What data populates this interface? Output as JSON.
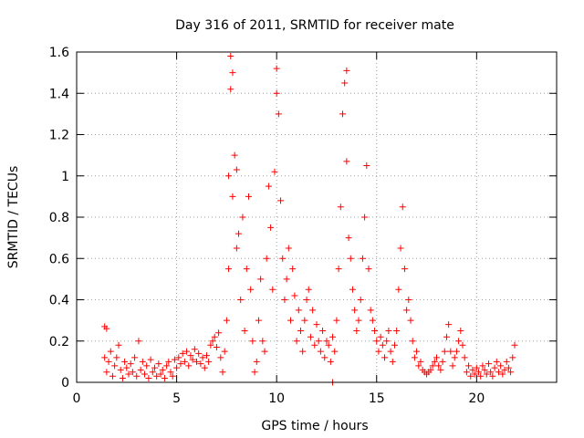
{
  "chart_data": {
    "type": "scatter",
    "title": "Day 316 of 2011, SRMTID for receiver mate",
    "xlabel": "GPS time / hours",
    "ylabel": "SRMTID / TECUs",
    "xlim": [
      0,
      24
    ],
    "ylim": [
      0,
      1.6
    ],
    "x_ticks": [
      0,
      5,
      10,
      15,
      20
    ],
    "y_ticks": [
      0,
      0.2,
      0.4,
      0.6,
      0.8,
      1,
      1.2,
      1.4,
      1.6
    ],
    "x_tick_labels": [
      "0",
      "5",
      "10",
      "15",
      "20"
    ],
    "y_tick_labels": [
      "0",
      "0.2",
      "0.4",
      "0.6",
      "0.8",
      "1",
      "1.2",
      "1.4",
      "1.6"
    ],
    "grid": true,
    "marker": "+",
    "color": "#ff0000",
    "series": [
      {
        "name": "SRMTID",
        "points": [
          [
            1.4,
            0.27
          ],
          [
            1.5,
            0.26
          ],
          [
            1.4,
            0.12
          ],
          [
            1.5,
            0.05
          ],
          [
            1.6,
            0.1
          ],
          [
            1.7,
            0.15
          ],
          [
            1.8,
            0.03
          ],
          [
            1.9,
            0.08
          ],
          [
            2.0,
            0.12
          ],
          [
            2.1,
            0.18
          ],
          [
            2.2,
            0.06
          ],
          [
            2.3,
            0.02
          ],
          [
            2.4,
            0.1
          ],
          [
            2.5,
            0.07
          ],
          [
            2.6,
            0.04
          ],
          [
            2.7,
            0.09
          ],
          [
            2.8,
            0.05
          ],
          [
            2.9,
            0.12
          ],
          [
            3.0,
            0.03
          ],
          [
            3.1,
            0.2
          ],
          [
            3.2,
            0.06
          ],
          [
            3.3,
            0.1
          ],
          [
            3.4,
            0.04
          ],
          [
            3.5,
            0.08
          ],
          [
            3.6,
            0.02
          ],
          [
            3.7,
            0.11
          ],
          [
            3.8,
            0.05
          ],
          [
            3.9,
            0.07
          ],
          [
            4.0,
            0.03
          ],
          [
            4.1,
            0.09
          ],
          [
            4.2,
            0.04
          ],
          [
            4.3,
            0.06
          ],
          [
            4.4,
            0.02
          ],
          [
            4.5,
            0.08
          ],
          [
            4.6,
            0.1
          ],
          [
            4.7,
            0.05
          ],
          [
            4.8,
            0.03
          ],
          [
            4.9,
            0.11
          ],
          [
            5.0,
            0.07
          ],
          [
            5.1,
            0.12
          ],
          [
            5.2,
            0.09
          ],
          [
            5.3,
            0.14
          ],
          [
            5.4,
            0.1
          ],
          [
            5.5,
            0.15
          ],
          [
            5.6,
            0.08
          ],
          [
            5.7,
            0.13
          ],
          [
            5.8,
            0.11
          ],
          [
            5.9,
            0.16
          ],
          [
            6.0,
            0.1
          ],
          [
            6.1,
            0.14
          ],
          [
            6.2,
            0.09
          ],
          [
            6.3,
            0.12
          ],
          [
            6.4,
            0.07
          ],
          [
            6.5,
            0.13
          ],
          [
            6.6,
            0.1
          ],
          [
            6.7,
            0.18
          ],
          [
            6.8,
            0.2
          ],
          [
            6.9,
            0.22
          ],
          [
            7.0,
            0.17
          ],
          [
            7.1,
            0.24
          ],
          [
            7.2,
            0.12
          ],
          [
            7.3,
            0.05
          ],
          [
            7.4,
            0.15
          ],
          [
            7.5,
            0.3
          ],
          [
            7.6,
            0.55
          ],
          [
            7.6,
            1.0
          ],
          [
            7.7,
            1.42
          ],
          [
            7.7,
            1.58
          ],
          [
            7.8,
            1.5
          ],
          [
            7.8,
            0.9
          ],
          [
            7.9,
            1.1
          ],
          [
            8.0,
            0.65
          ],
          [
            8.0,
            1.03
          ],
          [
            8.1,
            0.72
          ],
          [
            8.2,
            0.4
          ],
          [
            8.3,
            0.8
          ],
          [
            8.4,
            0.25
          ],
          [
            8.5,
            0.55
          ],
          [
            8.6,
            0.9
          ],
          [
            8.7,
            0.45
          ],
          [
            8.8,
            0.2
          ],
          [
            8.9,
            0.05
          ],
          [
            9.0,
            0.1
          ],
          [
            9.1,
            0.3
          ],
          [
            9.2,
            0.5
          ],
          [
            9.3,
            0.2
          ],
          [
            9.4,
            0.15
          ],
          [
            9.5,
            0.6
          ],
          [
            9.6,
            0.95
          ],
          [
            9.7,
            0.75
          ],
          [
            9.8,
            0.45
          ],
          [
            9.9,
            1.02
          ],
          [
            10.0,
            1.4
          ],
          [
            10.0,
            1.52
          ],
          [
            10.1,
            1.3
          ],
          [
            10.2,
            0.88
          ],
          [
            10.3,
            0.6
          ],
          [
            10.4,
            0.4
          ],
          [
            10.5,
            0.5
          ],
          [
            10.6,
            0.65
          ],
          [
            10.7,
            0.3
          ],
          [
            10.8,
            0.55
          ],
          [
            10.9,
            0.42
          ],
          [
            11.0,
            0.2
          ],
          [
            11.1,
            0.35
          ],
          [
            11.2,
            0.25
          ],
          [
            11.3,
            0.15
          ],
          [
            11.4,
            0.3
          ],
          [
            11.5,
            0.4
          ],
          [
            11.6,
            0.45
          ],
          [
            11.7,
            0.22
          ],
          [
            11.8,
            0.35
          ],
          [
            11.9,
            0.18
          ],
          [
            12.0,
            0.28
          ],
          [
            12.1,
            0.2
          ],
          [
            12.2,
            0.15
          ],
          [
            12.3,
            0.25
          ],
          [
            12.4,
            0.12
          ],
          [
            12.5,
            0.2
          ],
          [
            12.6,
            0.18
          ],
          [
            12.7,
            0.1
          ],
          [
            12.8,
            0.22
          ],
          [
            12.8,
            0.0
          ],
          [
            12.9,
            0.15
          ],
          [
            13.0,
            0.3
          ],
          [
            13.1,
            0.55
          ],
          [
            13.2,
            0.85
          ],
          [
            13.3,
            1.3
          ],
          [
            13.4,
            1.45
          ],
          [
            13.5,
            1.51
          ],
          [
            13.5,
            1.07
          ],
          [
            13.6,
            0.7
          ],
          [
            13.7,
            0.6
          ],
          [
            13.8,
            0.45
          ],
          [
            13.9,
            0.35
          ],
          [
            14.0,
            0.25
          ],
          [
            14.1,
            0.3
          ],
          [
            14.2,
            0.4
          ],
          [
            14.3,
            0.6
          ],
          [
            14.4,
            0.8
          ],
          [
            14.5,
            1.05
          ],
          [
            14.6,
            0.55
          ],
          [
            14.7,
            0.35
          ],
          [
            14.8,
            0.3
          ],
          [
            14.9,
            0.25
          ],
          [
            15.0,
            0.2
          ],
          [
            15.1,
            0.15
          ],
          [
            15.2,
            0.22
          ],
          [
            15.3,
            0.18
          ],
          [
            15.4,
            0.12
          ],
          [
            15.5,
            0.2
          ],
          [
            15.6,
            0.25
          ],
          [
            15.7,
            0.15
          ],
          [
            15.8,
            0.1
          ],
          [
            15.9,
            0.18
          ],
          [
            16.0,
            0.25
          ],
          [
            16.1,
            0.45
          ],
          [
            16.2,
            0.65
          ],
          [
            16.3,
            0.85
          ],
          [
            16.4,
            0.55
          ],
          [
            16.5,
            0.35
          ],
          [
            16.6,
            0.4
          ],
          [
            16.7,
            0.3
          ],
          [
            16.8,
            0.2
          ],
          [
            16.9,
            0.12
          ],
          [
            17.0,
            0.15
          ],
          [
            17.1,
            0.08
          ],
          [
            17.2,
            0.1
          ],
          [
            17.3,
            0.06
          ],
          [
            17.4,
            0.05
          ],
          [
            17.5,
            0.04
          ],
          [
            17.6,
            0.05
          ],
          [
            17.7,
            0.06
          ],
          [
            17.8,
            0.08
          ],
          [
            17.9,
            0.1
          ],
          [
            18.0,
            0.12
          ],
          [
            18.1,
            0.08
          ],
          [
            18.2,
            0.06
          ],
          [
            18.3,
            0.1
          ],
          [
            18.4,
            0.15
          ],
          [
            18.5,
            0.22
          ],
          [
            18.6,
            0.28
          ],
          [
            18.7,
            0.15
          ],
          [
            18.8,
            0.08
          ],
          [
            18.9,
            0.12
          ],
          [
            19.0,
            0.15
          ],
          [
            19.1,
            0.2
          ],
          [
            19.2,
            0.25
          ],
          [
            19.3,
            0.18
          ],
          [
            19.4,
            0.12
          ],
          [
            19.5,
            0.05
          ],
          [
            19.6,
            0.08
          ],
          [
            19.7,
            0.03
          ],
          [
            19.8,
            0.06
          ],
          [
            19.9,
            0.04
          ],
          [
            20.0,
            0.07
          ],
          [
            20.1,
            0.05
          ],
          [
            20.2,
            0.03
          ],
          [
            20.3,
            0.08
          ],
          [
            20.4,
            0.06
          ],
          [
            20.5,
            0.04
          ],
          [
            20.6,
            0.09
          ],
          [
            20.7,
            0.05
          ],
          [
            20.8,
            0.03
          ],
          [
            20.9,
            0.07
          ],
          [
            21.0,
            0.1
          ],
          [
            21.1,
            0.05
          ],
          [
            21.2,
            0.08
          ],
          [
            21.3,
            0.04
          ],
          [
            21.4,
            0.06
          ],
          [
            21.5,
            0.1
          ],
          [
            21.6,
            0.07
          ],
          [
            21.7,
            0.05
          ],
          [
            21.8,
            0.12
          ],
          [
            21.9,
            0.18
          ]
        ]
      }
    ]
  }
}
